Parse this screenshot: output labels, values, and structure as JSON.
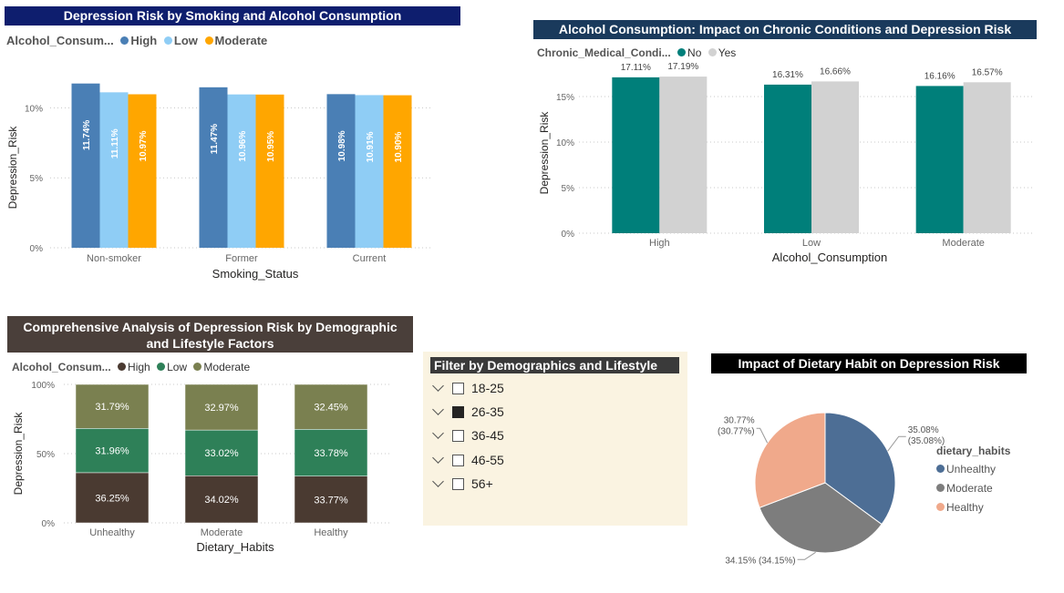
{
  "colors": {
    "high": "#4a7fb5",
    "low": "#8fcdf5",
    "moderate": "#ffa600",
    "no": "#007f7a",
    "yes": "#d2d2d2",
    "stack_high": "#4a3a31",
    "stack_low": "#2e8058",
    "stack_moderate": "#7a8050",
    "pie_unhealthy": "#4d6e95",
    "pie_moderate": "#7d7d7d",
    "pie_healthy": "#f0a98b"
  },
  "chart1": {
    "title": "Depression Risk by Smoking and Alcohol Consumption",
    "legend_title": "Alcohol_Consum...",
    "legend": [
      "High",
      "Low",
      "Moderate"
    ]
  },
  "chart2": {
    "title": "Alcohol Consumption: Impact on Chronic Conditions and Depression Risk",
    "legend_title": "Chronic_Medical_Condi...",
    "legend": [
      "No",
      "Yes"
    ]
  },
  "chart3": {
    "title_line1": "Comprehensive Analysis of Depression Risk by Demographic",
    "title_line2": "and Lifestyle Factors",
    "legend_title": "Alcohol_Consum...",
    "legend": [
      "High",
      "Low",
      "Moderate"
    ]
  },
  "slicer": {
    "title": "Filter by Demographics and Lifestyle",
    "items": [
      {
        "label": "18-25",
        "checked": false
      },
      {
        "label": "26-35",
        "checked": true
      },
      {
        "label": "36-45",
        "checked": false
      },
      {
        "label": "46-55",
        "checked": false
      },
      {
        "label": "56+",
        "checked": false
      }
    ]
  },
  "chart4": {
    "title": "Impact of Dietary Habit on Depression Risk",
    "legend_title": "dietary_habits",
    "legend": [
      "Unhealthy",
      "Moderate",
      "Healthy"
    ]
  },
  "chart_data": [
    {
      "type": "bar",
      "title": "Depression Risk by Smoking and Alcohol Consumption",
      "xlabel": "Smoking_Status",
      "ylabel": "Depression_Risk",
      "categories": [
        "Non-smoker",
        "Former",
        "Current"
      ],
      "series": [
        {
          "name": "High",
          "values": [
            11.74,
            11.47,
            10.98
          ],
          "labels": [
            "11.74%",
            "11.47%",
            "10.98%"
          ]
        },
        {
          "name": "Low",
          "values": [
            11.11,
            10.96,
            10.91
          ],
          "labels": [
            "11.11%",
            "10.96%",
            "10.91%"
          ]
        },
        {
          "name": "Moderate",
          "values": [
            10.97,
            10.95,
            10.9
          ],
          "labels": [
            "10.97%",
            "10.95%",
            "10.90%"
          ]
        }
      ],
      "yticks": [
        "0%",
        "5%",
        "10%"
      ],
      "ylim": [
        0,
        12.5
      ],
      "grid": true,
      "legend_position": "top-left"
    },
    {
      "type": "bar",
      "title": "Alcohol Consumption: Impact on Chronic Conditions and Depression Risk",
      "xlabel": "Alcohol_Consumption",
      "ylabel": "Depression_Risk",
      "categories": [
        "High",
        "Low",
        "Moderate"
      ],
      "series": [
        {
          "name": "No",
          "values": [
            17.11,
            16.31,
            16.16
          ],
          "labels": [
            "17.11%",
            "16.31%",
            "16.16%"
          ]
        },
        {
          "name": "Yes",
          "values": [
            17.19,
            16.66,
            16.57
          ],
          "labels": [
            "17.19%",
            "16.66%",
            "16.57%"
          ]
        }
      ],
      "yticks": [
        "0%",
        "5%",
        "10%",
        "15%"
      ],
      "ylim": [
        0,
        20
      ],
      "grid": true,
      "legend_position": "top-left"
    },
    {
      "type": "bar",
      "stacked": "100%",
      "title": "Comprehensive Analysis of Depression Risk by Demographic and Lifestyle Factors",
      "xlabel": "Dietary_Habits",
      "ylabel": "Depression_Risk",
      "categories": [
        "Unhealthy",
        "Moderate",
        "Healthy"
      ],
      "series": [
        {
          "name": "High",
          "values": [
            36.25,
            34.02,
            33.77
          ],
          "labels": [
            "36.25%",
            "34.02%",
            "33.77%"
          ]
        },
        {
          "name": "Low",
          "values": [
            31.96,
            33.02,
            33.78
          ],
          "labels": [
            "31.96%",
            "33.02%",
            "33.78%"
          ]
        },
        {
          "name": "Moderate",
          "values": [
            31.79,
            32.97,
            32.45
          ],
          "labels": [
            "31.79%",
            "32.97%",
            "32.45%"
          ]
        }
      ],
      "yticks": [
        "0%",
        "50%",
        "100%"
      ],
      "ylim": [
        0,
        100
      ],
      "grid": true,
      "legend_position": "top-left"
    },
    {
      "type": "pie",
      "title": "Impact of Dietary Habit on Depression Risk",
      "legend_title": "dietary_habits",
      "slices": [
        {
          "name": "Unhealthy",
          "value": 35.08,
          "label": "35.08%",
          "label2": "(35.08%)"
        },
        {
          "name": "Moderate",
          "value": 34.15,
          "label": "34.15% (34.15%)"
        },
        {
          "name": "Healthy",
          "value": 30.77,
          "label": "30.77%",
          "label2": "(30.77%)"
        }
      ],
      "legend_position": "right"
    }
  ]
}
